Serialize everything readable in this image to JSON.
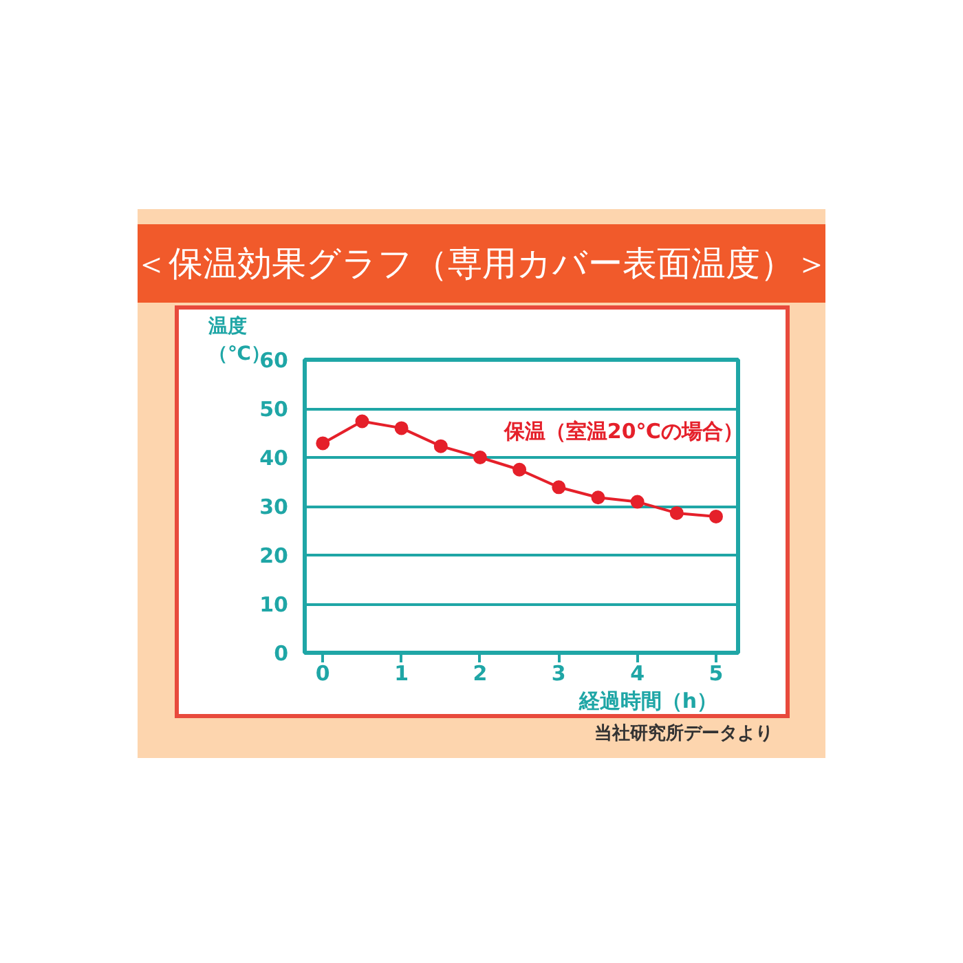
{
  "chart_data": {
    "type": "line",
    "title": "＜保温効果グラフ（専用カバー表面温度）＞",
    "xlabel": "経過時間（h）",
    "ylabel": "温度（℃）",
    "x": [
      0,
      0.5,
      1,
      1.5,
      2,
      2.5,
      3,
      3.5,
      4,
      4.5,
      5
    ],
    "series": [
      {
        "name": "保温（室温20℃の場合）",
        "color": "#e5202a",
        "values": [
          42.9,
          47.4,
          46.0,
          42.3,
          40.0,
          37.5,
          33.9,
          31.8,
          30.9,
          28.6,
          27.9
        ]
      }
    ],
    "xlim": [
      -0.23,
      5.28
    ],
    "ylim": [
      0,
      60
    ],
    "xticks": [
      0,
      1,
      2,
      3,
      4,
      5
    ],
    "yticks": [
      0,
      10,
      20,
      30,
      40,
      50,
      60
    ],
    "grid": "y",
    "marker": "circle",
    "line_style": "solid",
    "annotations": [
      "当社研究所データより"
    ]
  }
}
